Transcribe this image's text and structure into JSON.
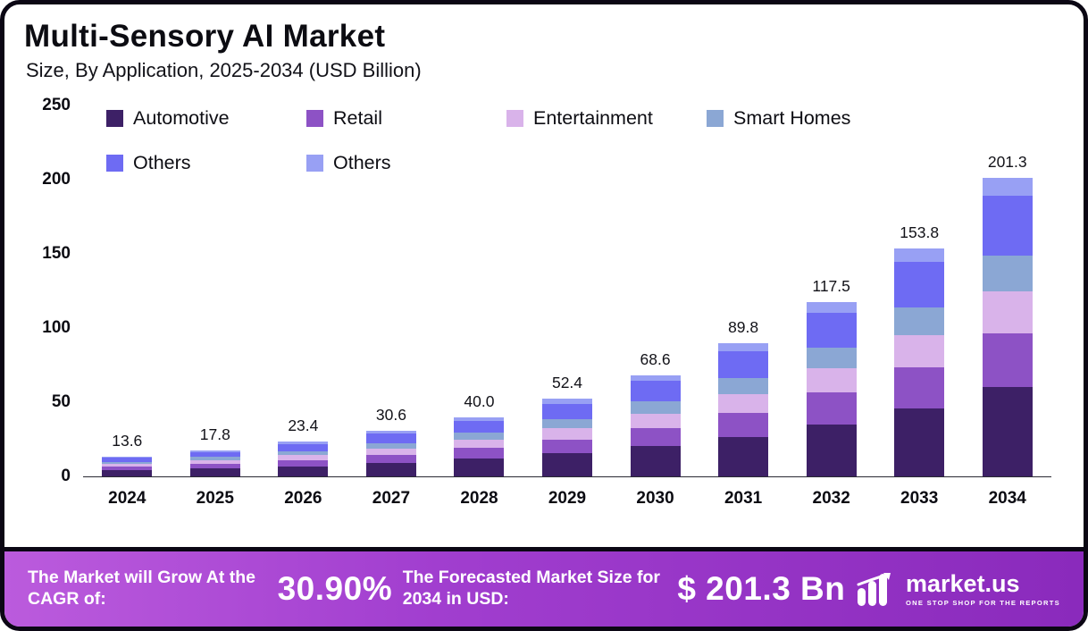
{
  "header": {
    "title": "Multi-Sensory AI Market",
    "subtitle": "Size, By Application, 2025-2034 (USD Billion)"
  },
  "chart_data": {
    "type": "bar",
    "stacked": true,
    "title": "Multi-Sensory AI Market Size, By Application, 2025-2034 (USD Billion)",
    "xlabel": "",
    "ylabel": "",
    "ylim": [
      0,
      250
    ],
    "yticks": [
      0,
      50,
      100,
      150,
      200,
      250
    ],
    "grid": false,
    "legend_position": "top-left",
    "categories": [
      "2024",
      "2025",
      "2026",
      "2027",
      "2028",
      "2029",
      "2030",
      "2031",
      "2032",
      "2033",
      "2034"
    ],
    "totals": [
      "13.6",
      "17.8",
      "23.4",
      "30.6",
      "40.0",
      "52.4",
      "68.6",
      "89.8",
      "117.5",
      "153.8",
      "201.3"
    ],
    "series": [
      {
        "name": "Automotive",
        "color": "#3d2066",
        "values": [
          4.1,
          5.3,
          7.0,
          9.2,
          12.0,
          15.7,
          20.6,
          26.9,
          35.3,
          46.1,
          60.4
        ]
      },
      {
        "name": "Retail",
        "color": "#8d52c5",
        "values": [
          2.4,
          3.2,
          4.2,
          5.5,
          7.2,
          9.4,
          12.3,
          16.2,
          21.2,
          27.7,
          36.2
        ]
      },
      {
        "name": "Entertainment",
        "color": "#d9b3ea",
        "values": [
          1.9,
          2.5,
          3.3,
          4.3,
          5.6,
          7.3,
          9.6,
          12.6,
          16.5,
          21.5,
          28.2
        ]
      },
      {
        "name": "Smart Homes",
        "color": "#8ba7d4",
        "values": [
          1.6,
          2.1,
          2.8,
          3.7,
          4.8,
          6.3,
          8.2,
          10.8,
          14.1,
          18.5,
          24.2
        ]
      },
      {
        "name": "Others",
        "color": "#6e6bf3",
        "values": [
          2.7,
          3.6,
          4.7,
          6.1,
          8.0,
          10.5,
          13.7,
          18.0,
          23.5,
          30.8,
          40.3
        ]
      },
      {
        "name": "Others",
        "color": "#98a0f4",
        "values": [
          0.8,
          1.1,
          1.4,
          1.8,
          2.4,
          3.1,
          4.1,
          5.4,
          7.1,
          9.2,
          12.1
        ]
      }
    ]
  },
  "footer": {
    "cagr_label": "The Market will Grow At the CAGR of:",
    "cagr_value": "30.90%",
    "forecast_label": "The Forecasted Market Size for 2034 in USD:",
    "forecast_value": "$ 201.3 Bn",
    "brand": "market.us",
    "brand_tagline": "ONE STOP SHOP FOR THE REPORTS"
  }
}
